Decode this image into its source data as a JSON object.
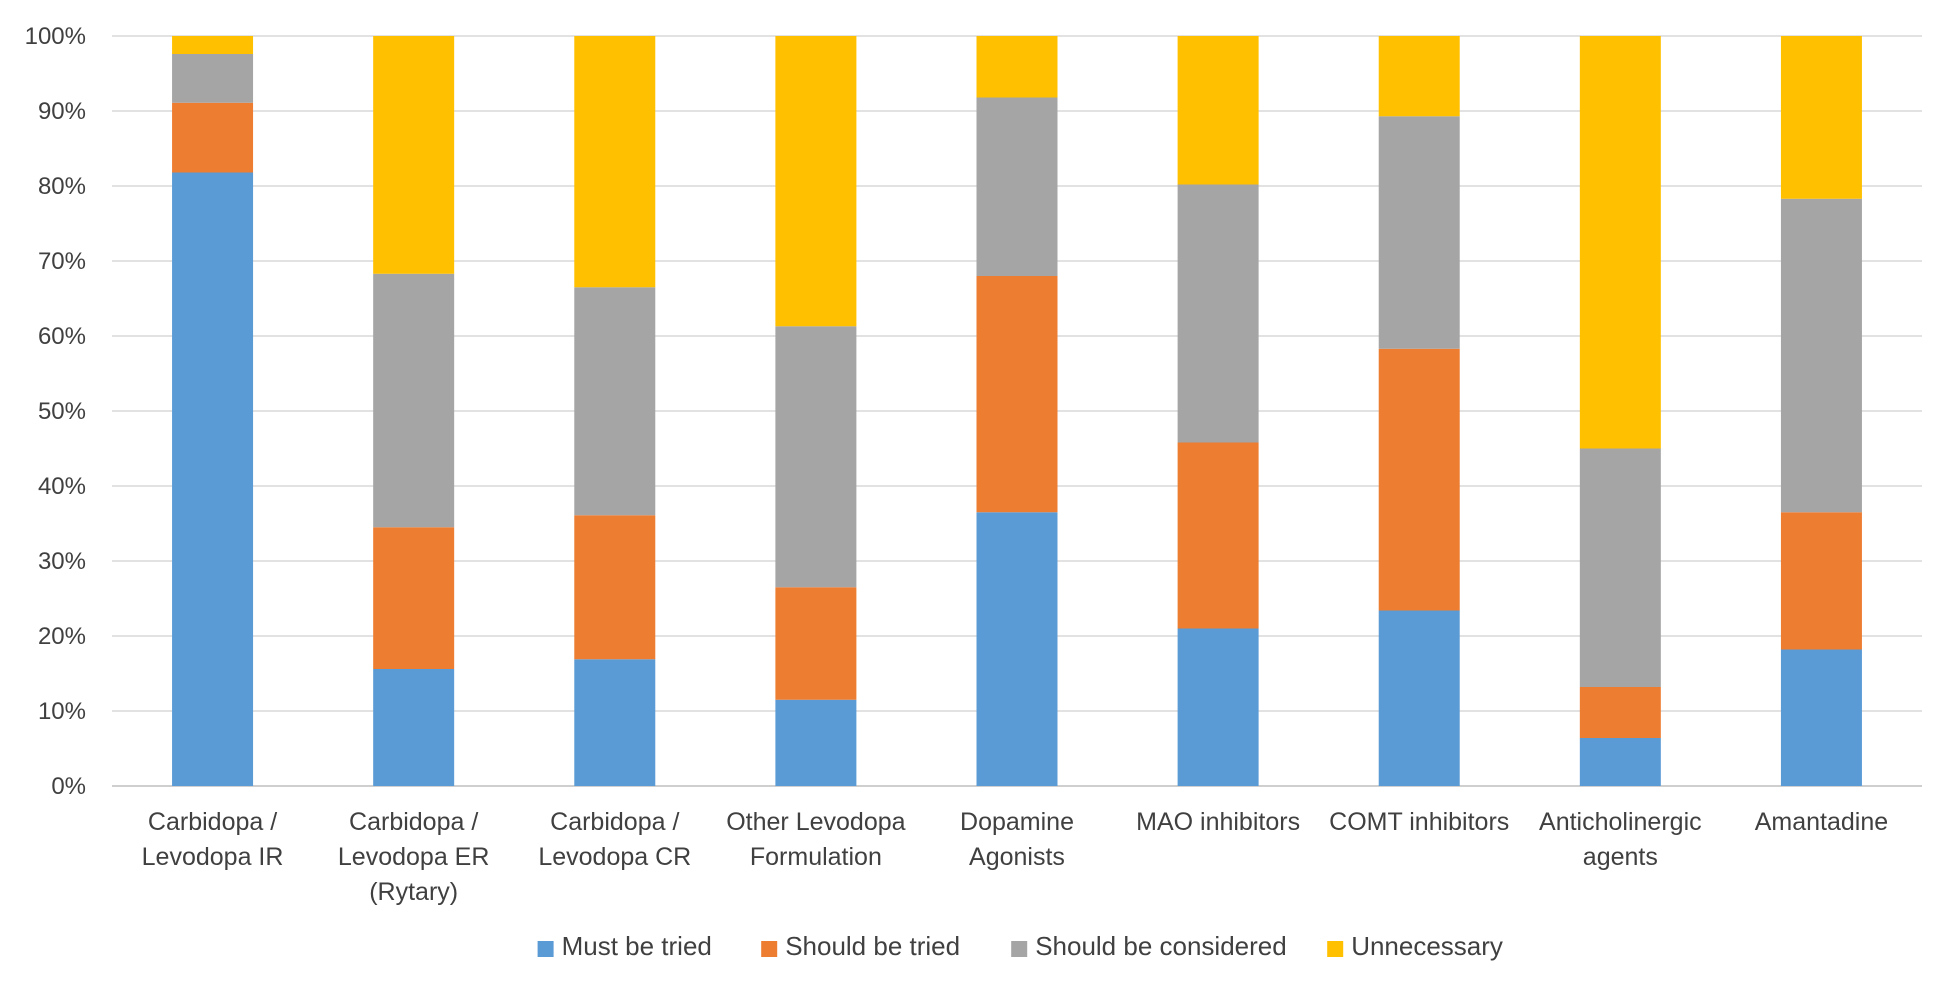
{
  "chart_data": {
    "type": "bar",
    "stacked": true,
    "percent_stacked": true,
    "title": "",
    "xlabel": "",
    "ylabel": "",
    "ylim": [
      0,
      100
    ],
    "y_ticks": [
      "0%",
      "10%",
      "20%",
      "30%",
      "40%",
      "50%",
      "60%",
      "70%",
      "80%",
      "90%",
      "100%"
    ],
    "grid": true,
    "legend_position": "bottom",
    "categories": [
      [
        "Carbidopa /",
        "Levodopa IR"
      ],
      [
        "Carbidopa /",
        "Levodopa ER",
        "(Rytary)"
      ],
      [
        "Carbidopa /",
        "Levodopa CR"
      ],
      [
        "Other Levodopa",
        "Formulation"
      ],
      [
        "Dopamine",
        "Agonists"
      ],
      [
        "MAO inhibitors"
      ],
      [
        "COMT inhibitors"
      ],
      [
        "Anticholinergic",
        "agents"
      ],
      [
        "Amantadine"
      ]
    ],
    "series": [
      {
        "name": "Must be tried",
        "color": "#5B9BD5",
        "values": [
          81.8,
          15.6,
          16.9,
          11.5,
          36.5,
          21.0,
          23.4,
          6.4,
          18.2
        ]
      },
      {
        "name": "Should be tried",
        "color": "#ED7D31",
        "values": [
          9.3,
          18.9,
          19.2,
          15.0,
          31.5,
          24.8,
          34.9,
          6.8,
          18.3
        ]
      },
      {
        "name": "Should be considered",
        "color": "#A5A5A5",
        "values": [
          6.5,
          33.8,
          30.4,
          34.8,
          23.8,
          34.4,
          31.0,
          31.8,
          41.8
        ]
      },
      {
        "name": "Unnecessary",
        "color": "#FFC000",
        "values": [
          2.4,
          31.7,
          33.5,
          38.7,
          8.2,
          19.8,
          10.7,
          55.0,
          21.7
        ]
      }
    ]
  }
}
